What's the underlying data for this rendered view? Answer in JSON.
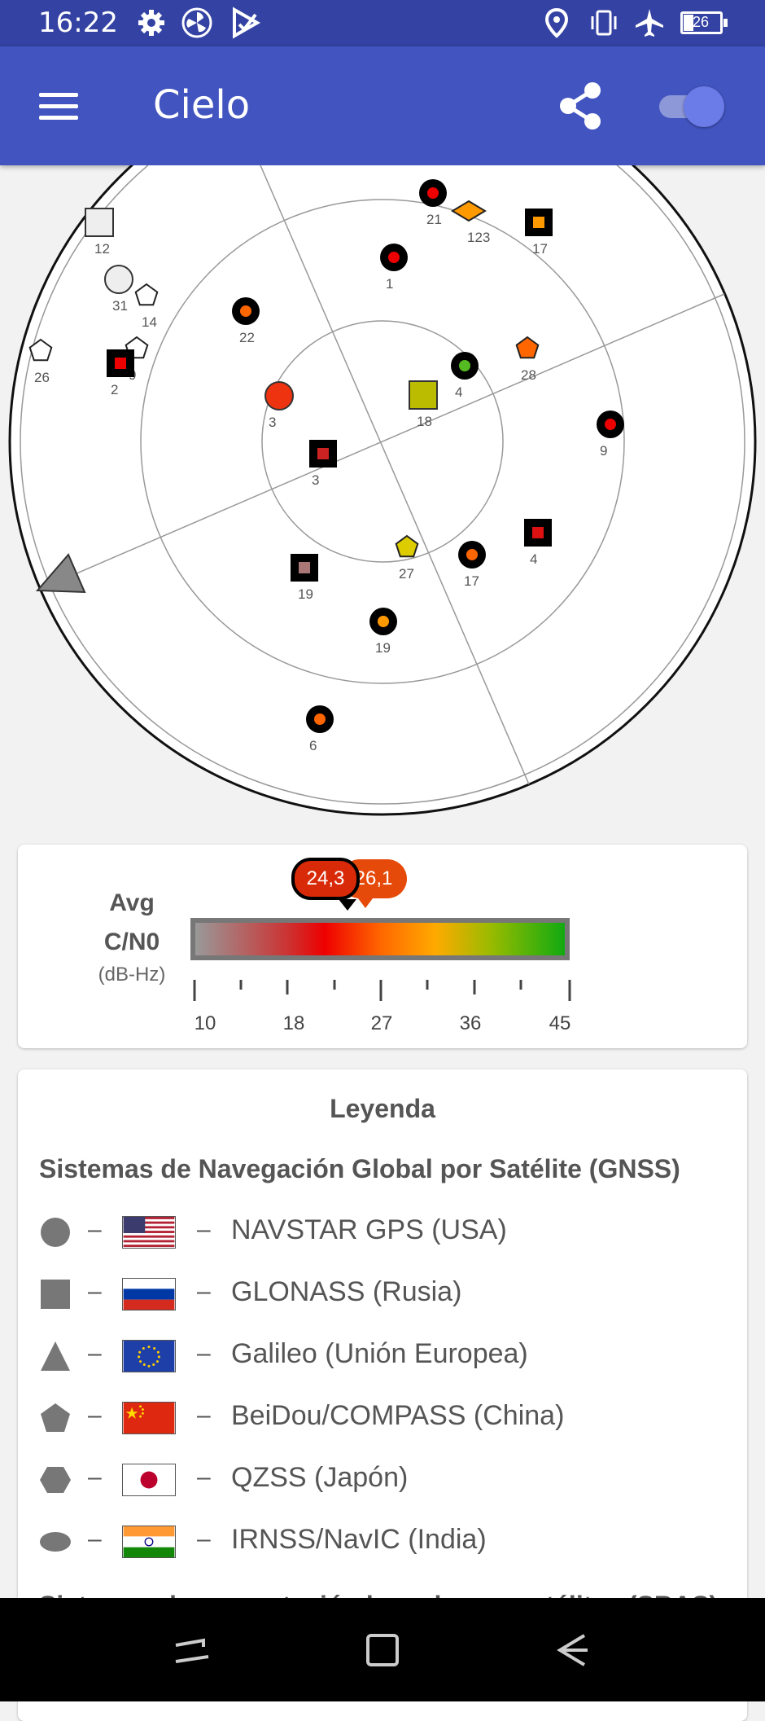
{
  "status_bar": {
    "time": "16:22",
    "battery": "26"
  },
  "app_bar": {
    "title": "Cielo"
  },
  "skyplot": {
    "satellites": [
      {
        "label": "21",
        "shape": "circle",
        "fill": "#e00"
      },
      {
        "label": "123",
        "shape": "diamond",
        "fill": "#f90"
      },
      {
        "label": "17",
        "shape": "square",
        "fill": "#f90"
      },
      {
        "label": "1",
        "shape": "circle",
        "fill": "#e00"
      },
      {
        "label": "12",
        "shape": "square",
        "fill": "#eee"
      },
      {
        "label": "31",
        "shape": "circle",
        "fill": "#eee"
      },
      {
        "label": "14",
        "shape": "pentagon",
        "fill": "#fff"
      },
      {
        "label": "22",
        "shape": "circle",
        "fill": "#f60"
      },
      {
        "label": "26",
        "shape": "pentagon",
        "fill": "#fff"
      },
      {
        "label": "9",
        "shape": "pentagon",
        "fill": "#fff"
      },
      {
        "label": "2",
        "shape": "square",
        "fill": "#e00"
      },
      {
        "label": "4",
        "shape": "circle",
        "fill": "#5b2"
      },
      {
        "label": "28",
        "shape": "pentagon",
        "fill": "#f60"
      },
      {
        "label": "3",
        "shape": "circle",
        "fill": "#e31"
      },
      {
        "label": "18",
        "shape": "square",
        "fill": "#bb0"
      },
      {
        "label": "9",
        "shape": "circle",
        "fill": "#e00"
      },
      {
        "label": "3",
        "shape": "square",
        "fill": "#c22"
      },
      {
        "label": "27",
        "shape": "pentagon",
        "fill": "#dc0"
      },
      {
        "label": "17",
        "shape": "circle",
        "fill": "#f60"
      },
      {
        "label": "4",
        "shape": "square",
        "fill": "#d11"
      },
      {
        "label": "19",
        "shape": "square",
        "fill": "#a77"
      },
      {
        "label": "19",
        "shape": "circle",
        "fill": "#f90"
      },
      {
        "label": "6",
        "shape": "circle",
        "fill": "#f60"
      }
    ]
  },
  "cn0": {
    "title_line1": "Avg",
    "title_line2": "C/N0",
    "unit": "(dB-Hz)",
    "ticks": [
      "10",
      "18",
      "27",
      "36",
      "45"
    ],
    "marker_used": "24,3",
    "marker_all": "26,1"
  },
  "legend": {
    "heading": "Leyenda",
    "gnss_heading": "Sistemas de Navegación Global por Satélite (GNSS)",
    "sbas_heading": "Sistemas de aumentación basados en satélites (SBAS)",
    "dash": "–",
    "rows": [
      {
        "icon": "circle-icon",
        "flag": "usa-flag",
        "name": "NAVSTAR GPS (USA)"
      },
      {
        "icon": "square-icon",
        "flag": "russia-flag",
        "name": "GLONASS (Rusia)"
      },
      {
        "icon": "triangle-icon",
        "flag": "eu-flag",
        "name": "Galileo (Unión Europea)"
      },
      {
        "icon": "pentagon-icon",
        "flag": "china-flag",
        "name": "BeiDou/COMPASS (China)"
      },
      {
        "icon": "hexagon-icon",
        "flag": "japan-flag",
        "name": "QZSS (Japón)"
      },
      {
        "icon": "oval-icon",
        "flag": "india-flag",
        "name": "IRNSS/NavIC (India)"
      }
    ]
  }
}
